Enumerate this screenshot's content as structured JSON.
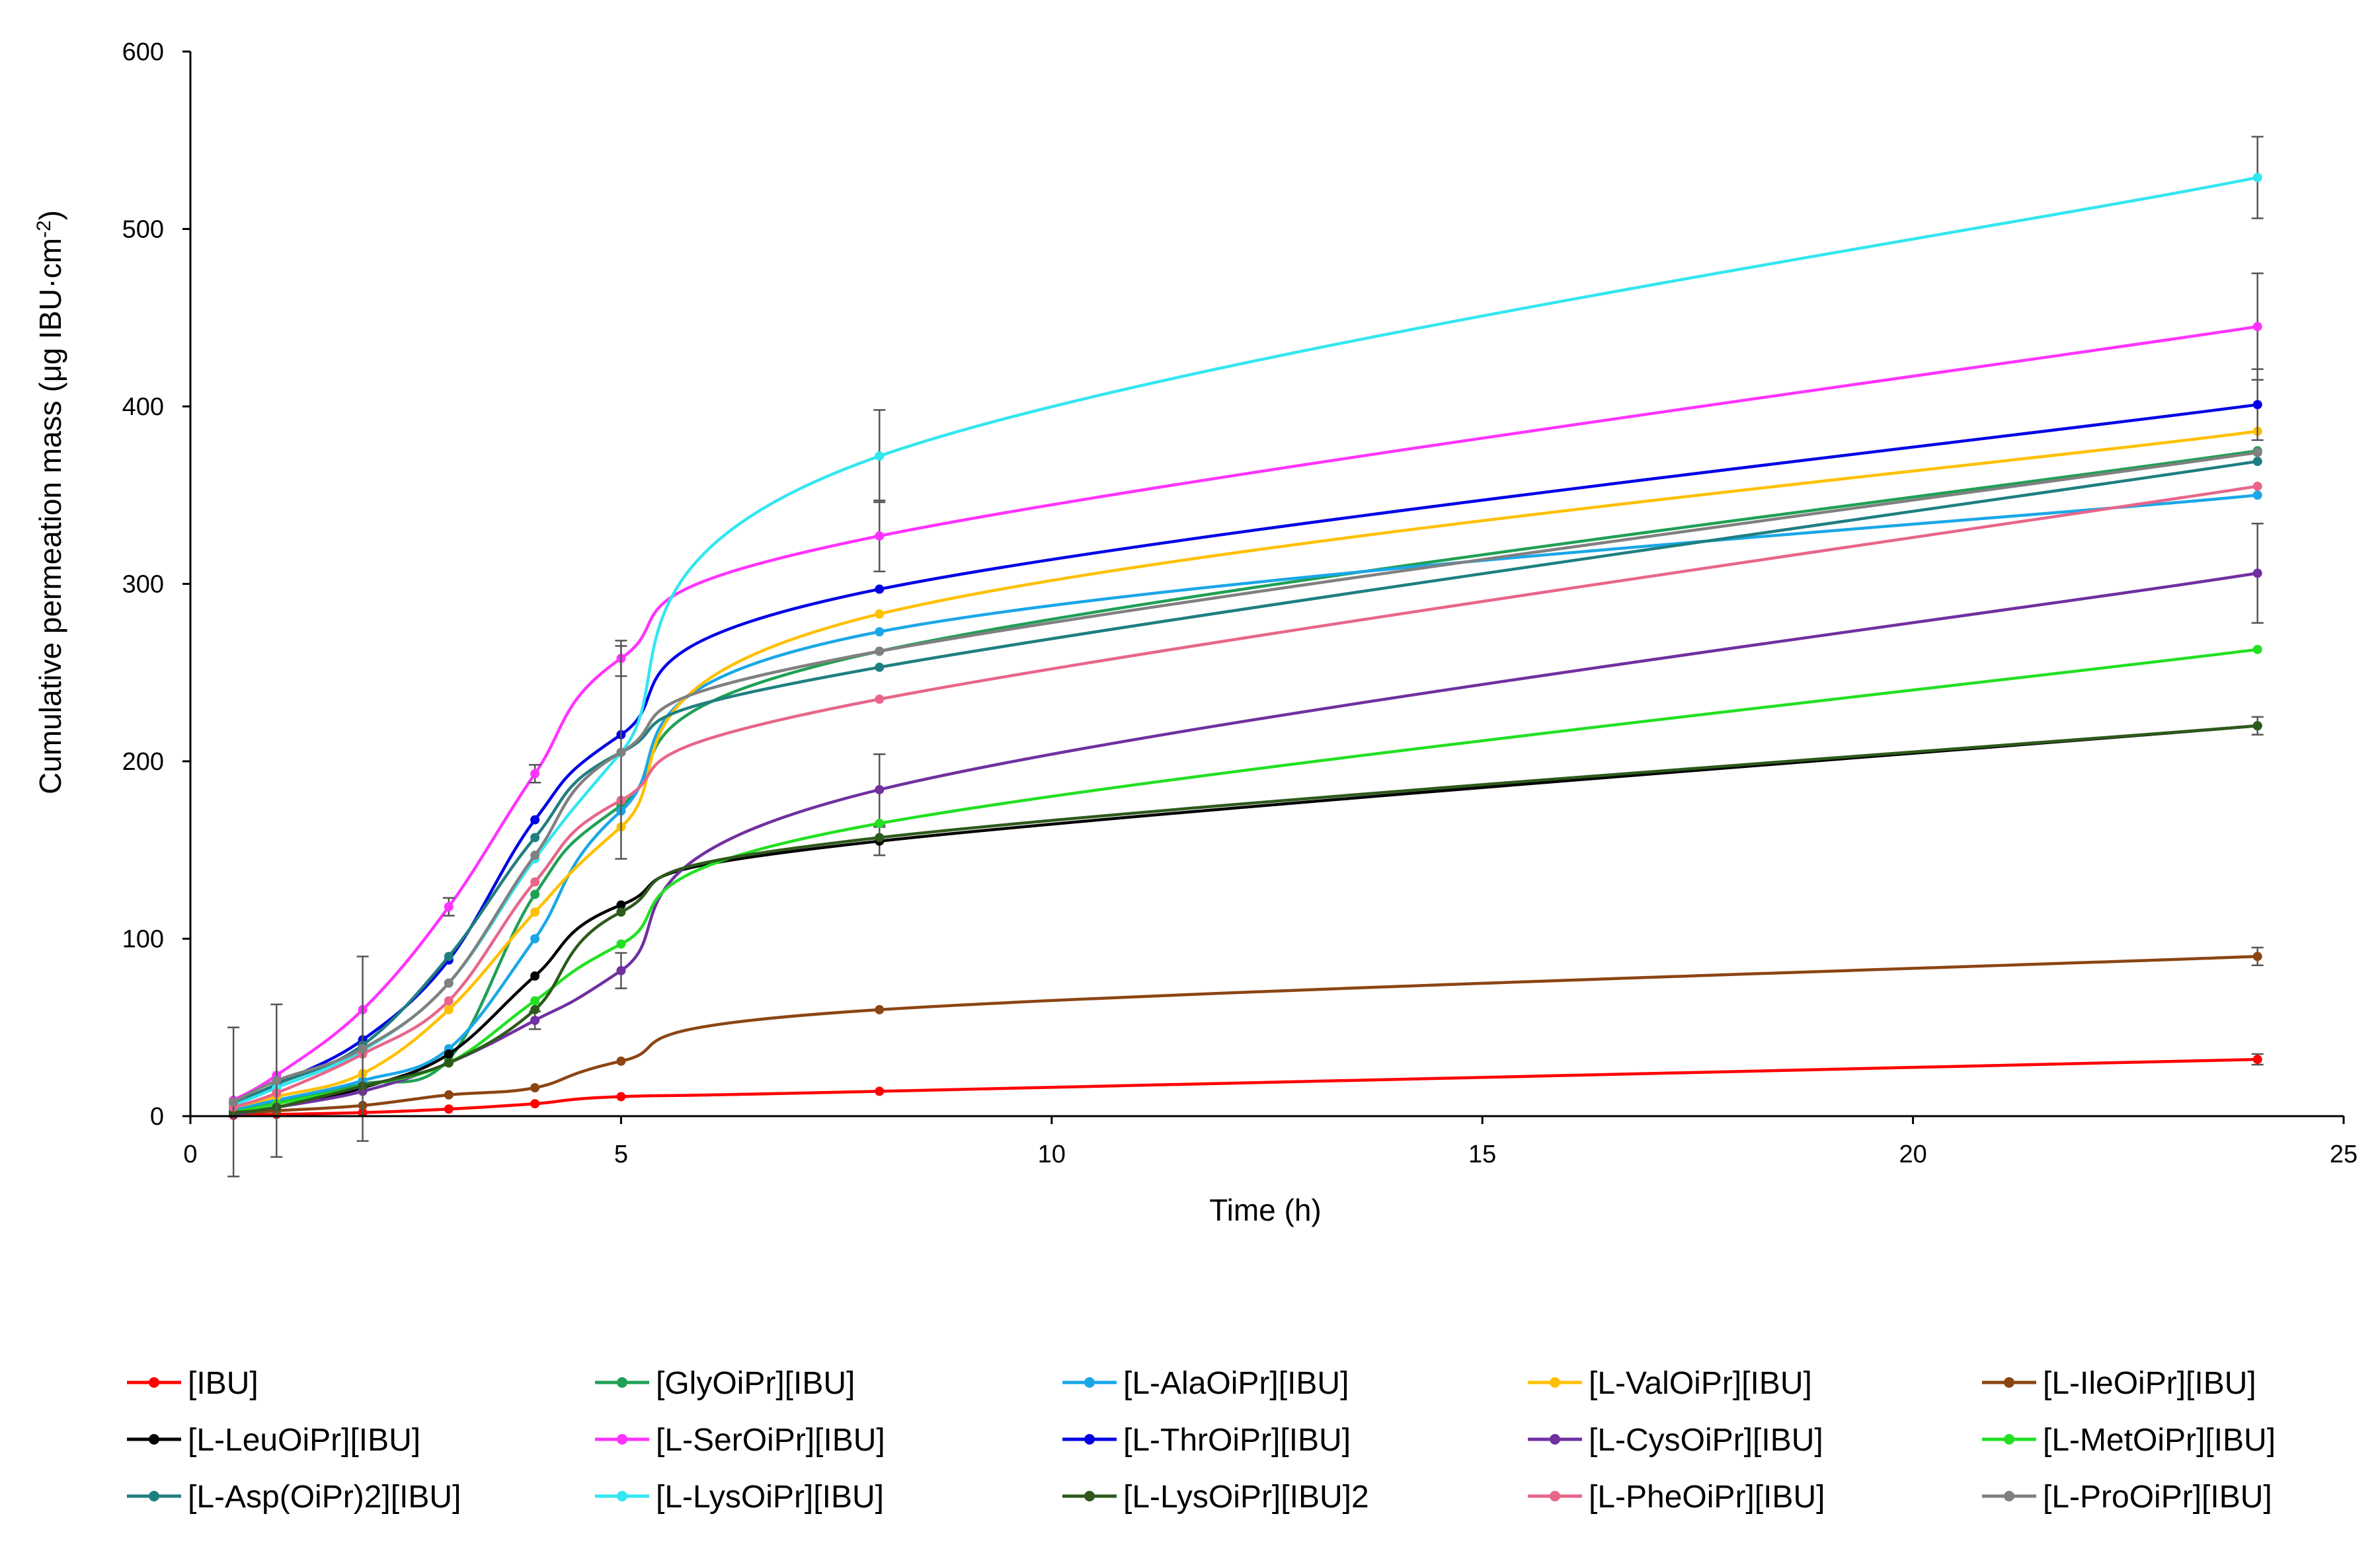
{
  "chart_data": {
    "type": "line",
    "title": "",
    "xlabel": "Time (h)",
    "ylabel": "Cumulative permeation mass (μg IBU·cm",
    "ylabel_superscript": "-2",
    "ylabel_suffix": ")",
    "xlim": [
      0,
      25
    ],
    "ylim": [
      0,
      600
    ],
    "x_ticks": [
      0,
      5,
      10,
      15,
      20,
      25
    ],
    "y_ticks": [
      0,
      100,
      200,
      300,
      400,
      500,
      600
    ],
    "grid": false,
    "legend_position": "bottom",
    "x": [
      0.5,
      1,
      2,
      3,
      4,
      5,
      8,
      24
    ],
    "series": [
      {
        "name": "[IBU]",
        "color": "#ff0000",
        "values": [
          0.5,
          1,
          2,
          4,
          7,
          11,
          14,
          32
        ],
        "errors": [
          0,
          0,
          0,
          0,
          0,
          0,
          0,
          3
        ]
      },
      {
        "name": "[GlyOiPr][IBU]",
        "color": "#1fa055",
        "values": [
          3,
          8,
          18,
          32,
          125,
          175,
          262,
          375
        ],
        "errors": [
          0,
          0,
          0,
          0,
          0,
          0,
          0,
          0
        ]
      },
      {
        "name": "[L-AlaOiPr][IBU]",
        "color": "#1aa7e8",
        "values": [
          4,
          9,
          20,
          38,
          100,
          172,
          273,
          350
        ],
        "errors": [
          0,
          0,
          0,
          0,
          0,
          0,
          0,
          0
        ]
      },
      {
        "name": "[L-ValOiPr][IBU]",
        "color": "#ffc000",
        "values": [
          5,
          11,
          24,
          60,
          115,
          163,
          283,
          386
        ],
        "errors": [
          0,
          0,
          0,
          0,
          0,
          0,
          0,
          0
        ]
      },
      {
        "name": "[L-IleOiPr][IBU]",
        "color": "#8b4513",
        "values": [
          1,
          3,
          6,
          12,
          16,
          31,
          60,
          90
        ],
        "errors": [
          0,
          0,
          0,
          0,
          0,
          0,
          0,
          5
        ]
      },
      {
        "name": "[L-LeuOiPr][IBU]",
        "color": "#000000",
        "values": [
          2,
          5,
          16,
          35,
          79,
          119,
          155,
          220
        ],
        "errors": [
          0,
          0,
          0,
          0,
          0,
          0,
          8,
          0
        ]
      },
      {
        "name": "[L-SerOiPr][IBU]",
        "color": "#ff33ff",
        "values": [
          9,
          23,
          60,
          118,
          193,
          258,
          327,
          445
        ],
        "errors": [
          0,
          0,
          0,
          5,
          5,
          10,
          20,
          30
        ]
      },
      {
        "name": "[L-ThrOiPr][IBU]",
        "color": "#0000e6",
        "values": [
          6,
          18,
          43,
          88,
          167,
          215,
          297,
          401
        ],
        "errors": [
          0,
          0,
          0,
          0,
          0,
          0,
          0,
          20
        ]
      },
      {
        "name": "[L-CysOiPr][IBU]",
        "color": "#7030a0",
        "values": [
          1,
          5,
          14,
          30,
          54,
          82,
          184,
          306
        ],
        "errors": [
          0,
          0,
          0,
          0,
          5,
          10,
          20,
          28
        ]
      },
      {
        "name": "[L-MetOiPr][IBU]",
        "color": "#22e022",
        "values": [
          2,
          7,
          17,
          30,
          65,
          97,
          165,
          263
        ],
        "errors": [
          0,
          0,
          0,
          0,
          0,
          0,
          0,
          0
        ]
      },
      {
        "name": "[L-Asp(OiPr)2][IBU]",
        "color": "#1f7f80",
        "values": [
          7,
          18,
          40,
          90,
          157,
          205,
          253,
          369
        ],
        "errors": [
          0,
          0,
          0,
          0,
          0,
          0,
          0,
          0
        ]
      },
      {
        "name": "[L-LysOiPr][IBU]",
        "color": "#33e6f0",
        "values": [
          6,
          16,
          37,
          75,
          145,
          205,
          372,
          529
        ],
        "errors": [
          0,
          0,
          0,
          0,
          0,
          0,
          26,
          23
        ]
      },
      {
        "name": "[L-LysOiPr][IBU]2",
        "color": "#2d5a1b",
        "values": [
          2,
          5,
          17,
          30,
          60,
          115,
          157,
          220
        ],
        "errors": [
          0,
          0,
          0,
          0,
          0,
          0,
          0,
          5
        ]
      },
      {
        "name": "[L-PheOiPr][IBU]",
        "color": "#e8668a",
        "values": [
          5,
          13,
          35,
          65,
          132,
          178,
          235,
          355
        ],
        "errors": [
          0,
          0,
          0,
          0,
          0,
          0,
          0,
          0
        ]
      },
      {
        "name": "[L-ProOiPr][IBU]",
        "color": "#808080",
        "values": [
          8,
          20,
          38,
          75,
          147,
          205,
          262,
          374
        ],
        "errors": [
          42,
          43,
          52,
          0,
          0,
          60,
          0,
          0
        ]
      }
    ]
  }
}
